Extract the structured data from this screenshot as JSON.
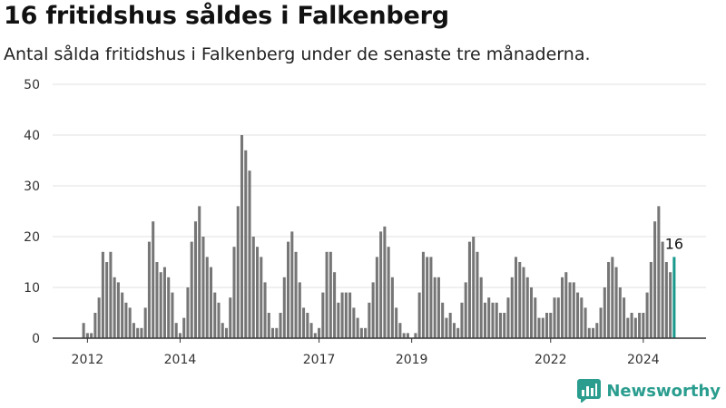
{
  "header": {
    "title": "16 fritidshus såldes i Falkenberg",
    "subtitle": "Antal sålda fritidshus i Falkenberg under de senaste tre månaderna."
  },
  "brand": {
    "name": "Newsworthy",
    "color": "#2a9d8f",
    "icon": "newsworthy-logo-icon"
  },
  "colors": {
    "bar": "#767676",
    "highlight": "#1a9a8c",
    "grid": "#e0e0e0",
    "axis": "#333333"
  },
  "chart_data": {
    "type": "bar",
    "title": "16 fritidshus såldes i Falkenberg",
    "subtitle": "Antal sålda fritidshus i Falkenberg under de senaste tre månaderna.",
    "x_start": "2011-12",
    "x_unit": "month",
    "values": [
      3,
      1,
      1,
      5,
      8,
      17,
      15,
      17,
      12,
      11,
      9,
      7,
      6,
      3,
      2,
      2,
      6,
      19,
      23,
      15,
      13,
      14,
      12,
      9,
      3,
      1,
      4,
      10,
      19,
      23,
      26,
      20,
      16,
      14,
      9,
      7,
      3,
      2,
      8,
      18,
      26,
      40,
      37,
      33,
      20,
      18,
      16,
      11,
      5,
      2,
      2,
      5,
      12,
      19,
      21,
      17,
      11,
      6,
      5,
      3,
      1,
      2,
      9,
      17,
      17,
      13,
      7,
      9,
      9,
      9,
      6,
      4,
      2,
      2,
      7,
      11,
      16,
      21,
      22,
      18,
      12,
      6,
      3,
      1,
      1,
      0,
      1,
      9,
      17,
      16,
      16,
      12,
      12,
      7,
      4,
      5,
      3,
      2,
      7,
      11,
      19,
      20,
      17,
      12,
      7,
      8,
      7,
      7,
      5,
      5,
      8,
      12,
      16,
      15,
      14,
      12,
      10,
      8,
      4,
      4,
      5,
      5,
      8,
      8,
      12,
      13,
      11,
      11,
      9,
      8,
      6,
      2,
      2,
      3,
      6,
      10,
      15,
      16,
      14,
      10,
      8,
      4,
      5,
      4,
      5,
      5,
      9,
      15,
      23,
      26,
      19,
      15,
      13,
      16
    ],
    "highlight_last": true,
    "last_value_label": "16",
    "x_ticks": [
      {
        "label": "2012",
        "date": "2012-01"
      },
      {
        "label": "2014",
        "date": "2014-01"
      },
      {
        "label": "2017",
        "date": "2017-01"
      },
      {
        "label": "2019",
        "date": "2019-01"
      },
      {
        "label": "2022",
        "date": "2022-01"
      },
      {
        "label": "2024",
        "date": "2024-01"
      }
    ],
    "y_ticks": [
      0,
      10,
      20,
      30,
      40,
      50
    ],
    "ylim": [
      0,
      50
    ],
    "grid": true,
    "legend": "none"
  }
}
